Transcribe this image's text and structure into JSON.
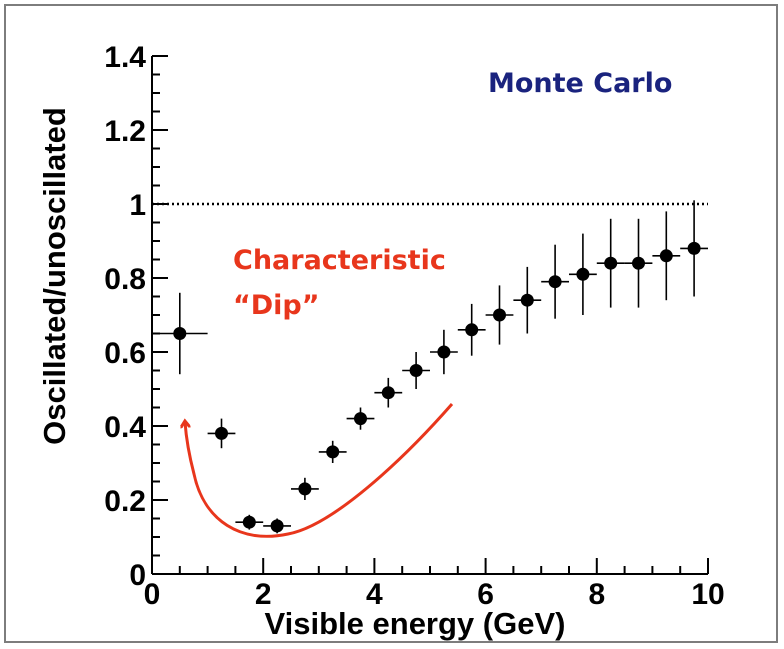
{
  "colors": {
    "frame": "#7d7d7d",
    "axis": "#000000",
    "points": "#000000",
    "monte_carlo_text": "#1a237e",
    "annotation": "#e8361c"
  },
  "chart_data": {
    "type": "scatter",
    "title": "",
    "xlabel": "Visible energy (GeV)",
    "ylabel": "Oscillated/unoscillated",
    "xlim": [
      0,
      10
    ],
    "ylim": [
      0,
      1.4
    ],
    "x_ticks": [
      "0",
      "2",
      "4",
      "6",
      "8",
      "10"
    ],
    "y_ticks": [
      "0",
      "0.2",
      "0.4",
      "0.6",
      "0.8",
      "1",
      "1.2",
      "1.4"
    ],
    "series": [
      {
        "x": [
          0.5,
          1.25,
          1.75,
          2.25,
          2.75,
          3.25,
          3.75,
          4.25,
          4.75,
          5.25,
          5.75,
          6.25,
          6.75,
          7.25,
          7.75,
          8.25,
          8.75,
          9.25,
          9.75
        ],
        "xerr": [
          0.5,
          0.25,
          0.25,
          0.25,
          0.25,
          0.25,
          0.25,
          0.25,
          0.25,
          0.25,
          0.25,
          0.25,
          0.25,
          0.25,
          0.25,
          0.25,
          0.25,
          0.25,
          0.25
        ],
        "y": [
          0.65,
          0.38,
          0.14,
          0.13,
          0.23,
          0.33,
          0.42,
          0.49,
          0.55,
          0.6,
          0.66,
          0.7,
          0.74,
          0.79,
          0.81,
          0.84,
          0.84,
          0.86,
          0.88
        ],
        "yerr": [
          0.11,
          0.04,
          0.02,
          0.02,
          0.03,
          0.03,
          0.03,
          0.04,
          0.05,
          0.06,
          0.07,
          0.08,
          0.09,
          0.1,
          0.11,
          0.12,
          0.12,
          0.12,
          0.13
        ]
      }
    ],
    "reference_line_y": 1,
    "grid": false,
    "annotations": {
      "monte_carlo": "Monte Carlo",
      "dip_line1": "Characteristic",
      "dip_line2": "“Dip”"
    }
  }
}
